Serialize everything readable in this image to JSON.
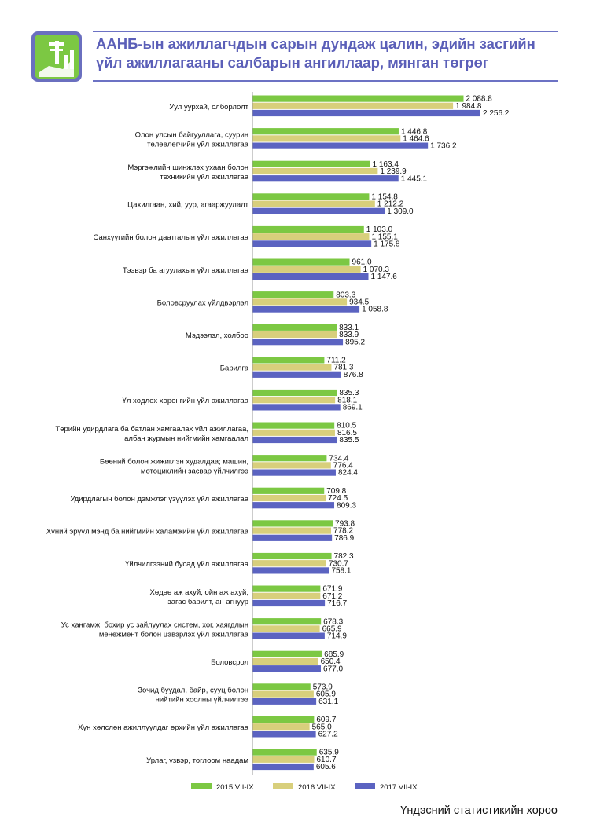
{
  "title_lines": [
    "ААНБ-ын ажиллагчдын сарын дундаж цалин, эдийн засгийн",
    "үйл ажиллагааны салбарын ангиллаар, мянган төгрөг"
  ],
  "source": "Үндэсний статистикийн хороо",
  "logo": "statistics-logo-icon",
  "colors": {
    "s2015": "#7cc843",
    "s2016": "#d8cf7c",
    "s2017": "#5b63c1",
    "title": "#5b5fb8"
  },
  "chart_data": {
    "type": "bar",
    "orientation": "horizontal",
    "categories": [
      [
        "Уул уурхай, олборлолт"
      ],
      [
        "Олон улсын байгууллага, суурин",
        "төлөөлөгчийн үйл ажиллагаа"
      ],
      [
        "Мэргэжлийн шинжлэх ухаан болон",
        "техникийн үйл ажиллагаа"
      ],
      [
        "Цахилгаан, хий, уур, агааржуулалт"
      ],
      [
        "Санхүүгийн болон даатгалын үйл ажиллагаа"
      ],
      [
        "Тээвэр ба агуулахын үйл ажиллагаа"
      ],
      [
        "Боловсруулах үйлдвэрлэл"
      ],
      [
        "Мэдээлэл, холбоо"
      ],
      [
        "Барилга"
      ],
      [
        "Үл хөдлөх хөрөнгийн үйл ажиллагаа"
      ],
      [
        "Төрийн удирдлага ба батлан хамгаалах үйл ажиллагаа,",
        "албан журмын нийгмийн хамгаалал"
      ],
      [
        "Бөөний болон жижиглэн худалдаа; машин,",
        "мотоциклийн засвар үйлчилгээ"
      ],
      [
        "Удирдлагын болон дэмжлэг үзүүлэх үйл ажиллагаа"
      ],
      [
        "Хүний эрүүл мэнд ба нийгмийн халамжийн үйл ажиллагаа"
      ],
      [
        "Үйлчилгээний бусад үйл ажиллагаа"
      ],
      [
        "Хөдөө аж ахуй, ойн аж ахуй,",
        "загас барилт, ан агнуур"
      ],
      [
        "Ус хангамж; бохир ус зайлуулах систем, хог, хаягдлын",
        "менежмент болон цэвэрлэх үйл ажиллагаа"
      ],
      [
        "Боловсрол"
      ],
      [
        "Зочид буудал, байр, сууц болон",
        "нийтийн хоолны үйлчилгээ"
      ],
      [
        "Хүн хөлслөн ажиллуулдаг өрхийн үйл ажиллагаа"
      ],
      [
        "Урлаг, үзвэр, тоглоом наадам"
      ]
    ],
    "series": [
      {
        "name": "2015 VII-IX",
        "values": [
          2088.8,
          1446.8,
          1163.4,
          1154.8,
          1103.0,
          961.0,
          803.3,
          833.1,
          711.2,
          835.3,
          810.5,
          734.4,
          709.8,
          793.8,
          782.3,
          671.9,
          678.3,
          685.9,
          573.9,
          609.7,
          635.9
        ],
        "labels": [
          "2 088.8",
          "1 446.8",
          "1 163.4",
          "1 154.8",
          "1 103.0",
          "961.0",
          "803.3",
          "833.1",
          "711.2",
          "835.3",
          "810.5",
          "734.4",
          "709.8",
          "793.8",
          "782.3",
          "671.9",
          "678.3",
          "685.9",
          "573.9",
          "609.7",
          "635.9"
        ]
      },
      {
        "name": "2016 VII-IX",
        "values": [
          1984.8,
          1464.6,
          1239.9,
          1212.2,
          1155.1,
          1070.3,
          934.5,
          833.9,
          781.3,
          818.1,
          816.5,
          776.4,
          724.5,
          778.2,
          730.7,
          671.2,
          665.9,
          650.4,
          605.9,
          565.0,
          610.7
        ],
        "labels": [
          "1 984.8",
          "1 464.6",
          "1 239.9",
          "1 212.2",
          "1 155.1",
          "1 070.3",
          "934.5",
          "833.9",
          "781.3",
          "818.1",
          "816.5",
          "776.4",
          "724.5",
          "778.2",
          "730.7",
          "671.2",
          "665.9",
          "650.4",
          "605.9",
          "565.0",
          "610.7"
        ]
      },
      {
        "name": "2017 VII-IX",
        "values": [
          2256.2,
          1736.2,
          1445.1,
          1309.0,
          1175.8,
          1147.6,
          1058.8,
          895.2,
          876.8,
          869.1,
          835.5,
          824.4,
          809.3,
          786.9,
          758.1,
          716.7,
          714.9,
          677.0,
          631.1,
          627.2,
          605.6
        ],
        "labels": [
          "2 256.2",
          "1 736.2",
          "1 445.1",
          "1 309.0",
          "1 175.8",
          "1 147.6",
          "1 058.8",
          "895.2",
          "876.8",
          "869.1",
          "835.5",
          "824.4",
          "809.3",
          "786.9",
          "758.1",
          "716.7",
          "714.9",
          "677.0",
          "631.1",
          "627.2",
          "605.6"
        ]
      }
    ],
    "xlim": [
      0,
      2256.2
    ],
    "legend": "bottom",
    "grid": false
  }
}
